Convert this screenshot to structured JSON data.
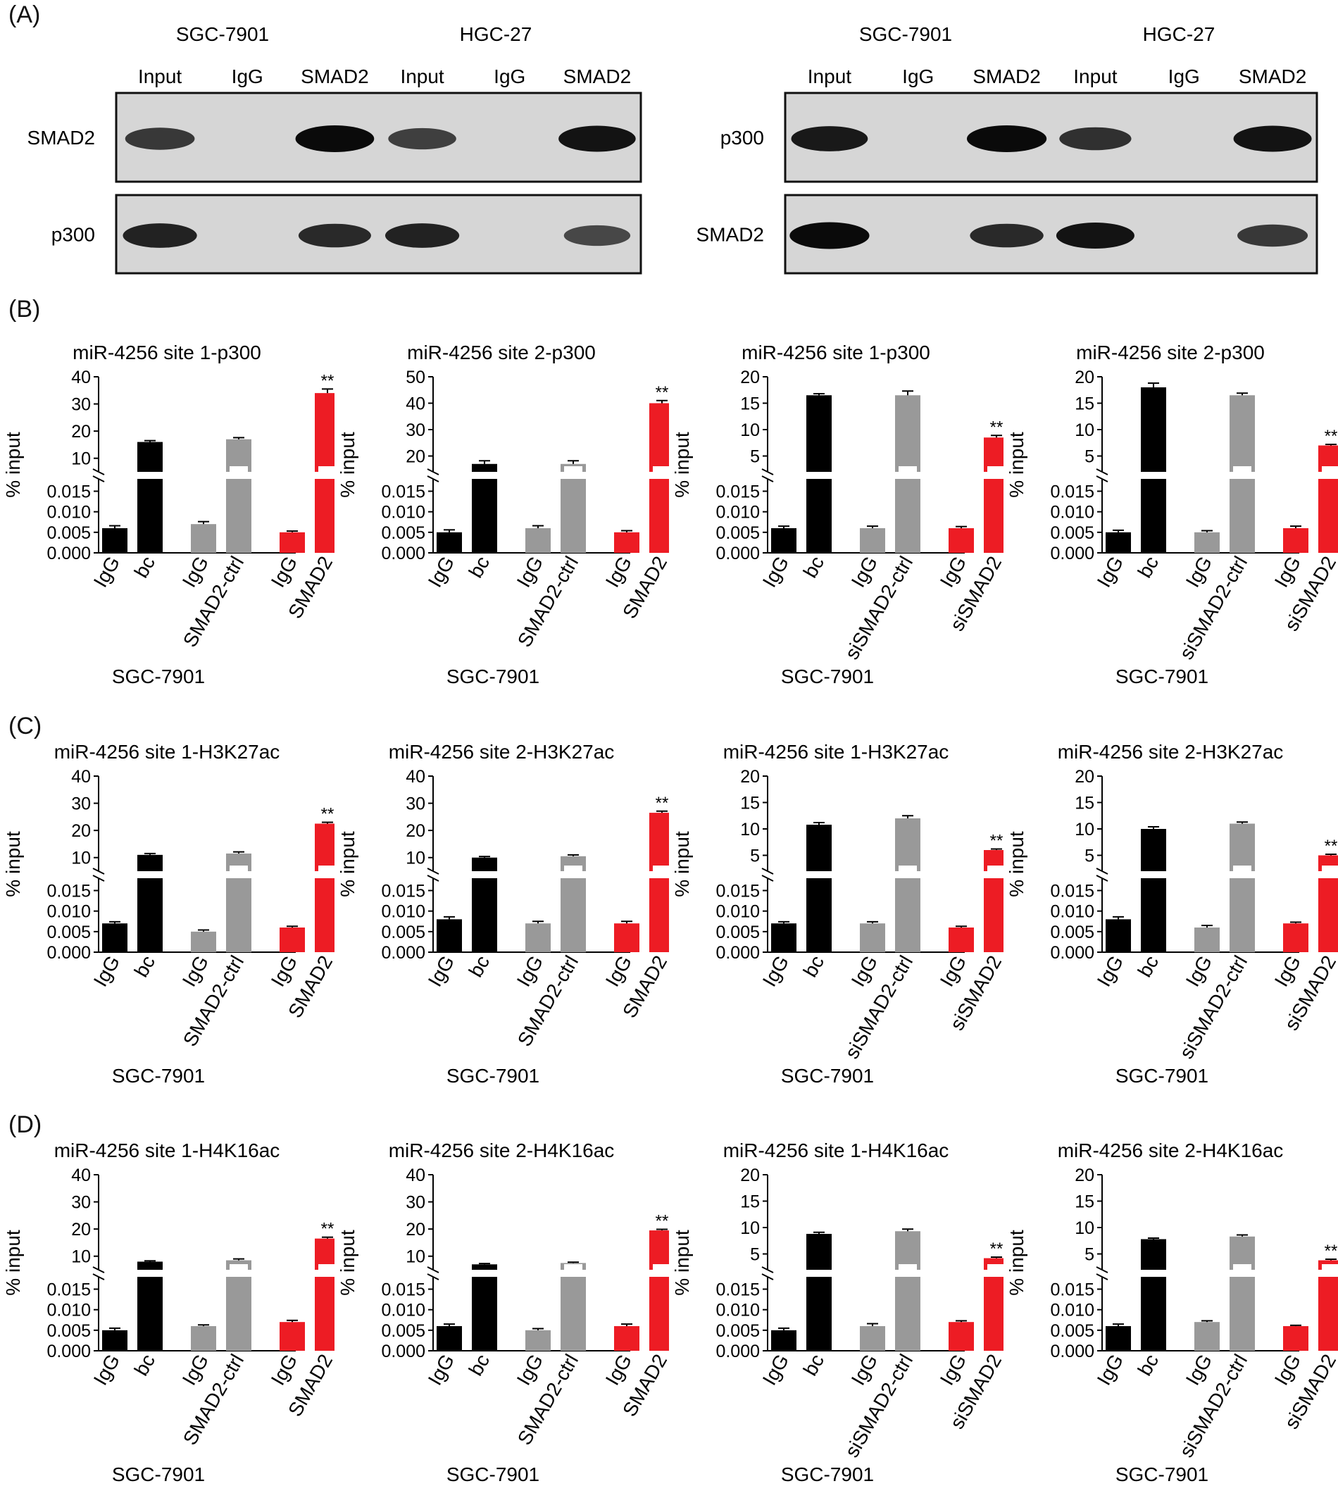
{
  "panel_labels": [
    "(A)",
    "(B)",
    "(C)",
    "(D)"
  ],
  "panel_a": {
    "left": {
      "cell_lines": [
        "SGC-7901",
        "HGC-27"
      ],
      "lanes": [
        "Input",
        "IgG",
        "SMAD2",
        "Input",
        "IgG",
        "SMAD2"
      ],
      "blots": [
        {
          "label": "SMAD2",
          "band_intensity": [
            0.7,
            0,
            1.0,
            0.65,
            0,
            0.95
          ]
        },
        {
          "label": "p300",
          "band_intensity": [
            0.85,
            0,
            0.8,
            0.85,
            0,
            0.6
          ]
        }
      ]
    },
    "right": {
      "cell_lines": [
        "SGC-7901",
        "HGC-27"
      ],
      "lanes": [
        "Input",
        "IgG",
        "SMAD2",
        "Input",
        "IgG",
        "SMAD2"
      ],
      "blots": [
        {
          "label": "p300",
          "band_intensity": [
            0.9,
            0,
            1.0,
            0.75,
            0,
            0.95
          ]
        },
        {
          "label": "SMAD2",
          "band_intensity": [
            1.0,
            0,
            0.8,
            0.95,
            0,
            0.7
          ]
        }
      ]
    }
  },
  "colors": {
    "black": "#000000",
    "gray": "#999999",
    "red": "#ed1c24"
  },
  "chart_data": [
    {
      "panel": "B",
      "type": "bar",
      "title": "miR-4256 site 1-p300",
      "ylabel": "% input",
      "xlabel": "SGC-7901",
      "categories": [
        "IgG",
        "bc",
        "IgG",
        "SMAD2-ctrl",
        "IgG",
        "SMAD2"
      ],
      "bar_colors": [
        "black",
        "black",
        "gray",
        "gray",
        "red",
        "red"
      ],
      "lower_axis": {
        "ticks": [
          "0.000",
          "0.005",
          "0.010",
          "0.015"
        ],
        "max": 0.018
      },
      "upper_axis": {
        "ticks": [
          "10",
          "20",
          "30",
          "40"
        ],
        "min": 5,
        "max": 40
      },
      "values": [
        0.006,
        16,
        0.007,
        17,
        0.005,
        34
      ],
      "errors": [
        0.0006,
        0.5,
        0.0006,
        0.6,
        0.0003,
        1.5
      ],
      "significance": [
        null,
        null,
        null,
        null,
        null,
        "**"
      ]
    },
    {
      "panel": "B",
      "type": "bar",
      "title": "miR-4256 site 2-p300",
      "ylabel": "% input",
      "xlabel": "SGC-7901",
      "categories": [
        "IgG",
        "bc",
        "IgG",
        "SMAD2-ctrl",
        "IgG",
        "SMAD2"
      ],
      "bar_colors": [
        "black",
        "black",
        "gray",
        "gray",
        "red",
        "red"
      ],
      "lower_axis": {
        "ticks": [
          "0.000",
          "0.005",
          "0.010",
          "0.015"
        ],
        "max": 0.018
      },
      "upper_axis": {
        "ticks": [
          "20",
          "30",
          "40",
          "50"
        ],
        "min": 14,
        "max": 50
      },
      "values": [
        0.005,
        17,
        0.006,
        17,
        0.005,
        40
      ],
      "errors": [
        0.0006,
        1.2,
        0.0006,
        1.2,
        0.0004,
        1.0
      ],
      "significance": [
        null,
        null,
        null,
        null,
        null,
        "**"
      ]
    },
    {
      "panel": "B",
      "type": "bar",
      "title": "miR-4256 site 1-p300",
      "ylabel": "% input",
      "xlabel": "SGC-7901",
      "categories": [
        "IgG",
        "bc",
        "IgG",
        "siSMAD2-ctrl",
        "IgG",
        "siSMAD2"
      ],
      "bar_colors": [
        "black",
        "black",
        "gray",
        "gray",
        "red",
        "red"
      ],
      "lower_axis": {
        "ticks": [
          "0.000",
          "0.005",
          "0.010",
          "0.015"
        ],
        "max": 0.018
      },
      "upper_axis": {
        "ticks": [
          "5",
          "10",
          "15",
          "20"
        ],
        "min": 2,
        "max": 20
      },
      "values": [
        0.006,
        16.5,
        0.006,
        16.5,
        0.006,
        8.5
      ],
      "errors": [
        0.0005,
        0.3,
        0.0005,
        0.8,
        0.0004,
        0.4
      ],
      "significance": [
        null,
        null,
        null,
        null,
        null,
        "**"
      ]
    },
    {
      "panel": "B",
      "type": "bar",
      "title": "miR-4256 site 2-p300",
      "ylabel": "% input",
      "xlabel": "SGC-7901",
      "categories": [
        "IgG",
        "bc",
        "IgG",
        "siSMAD2-ctrl",
        "IgG",
        "siSMAD2"
      ],
      "bar_colors": [
        "black",
        "black",
        "gray",
        "gray",
        "red",
        "red"
      ],
      "lower_axis": {
        "ticks": [
          "0.000",
          "0.005",
          "0.010",
          "0.015"
        ],
        "max": 0.018
      },
      "upper_axis": {
        "ticks": [
          "5",
          "10",
          "15",
          "20"
        ],
        "min": 2,
        "max": 20
      },
      "values": [
        0.005,
        18,
        0.005,
        16.5,
        0.006,
        7
      ],
      "errors": [
        0.0005,
        0.8,
        0.0004,
        0.4,
        0.0005,
        0.2
      ],
      "significance": [
        null,
        null,
        null,
        null,
        null,
        "**"
      ]
    },
    {
      "panel": "C",
      "type": "bar",
      "title": "miR-4256 site 1-H3K27ac",
      "ylabel": "% input",
      "xlabel": "SGC-7901",
      "categories": [
        "IgG",
        "bc",
        "IgG",
        "SMAD2-ctrl",
        "IgG",
        "SMAD2"
      ],
      "bar_colors": [
        "black",
        "black",
        "gray",
        "gray",
        "red",
        "red"
      ],
      "lower_axis": {
        "ticks": [
          "0.000",
          "0.005",
          "0.010",
          "0.015"
        ],
        "max": 0.018
      },
      "upper_axis": {
        "ticks": [
          "10",
          "20",
          "30",
          "40"
        ],
        "min": 5,
        "max": 40
      },
      "values": [
        0.007,
        11,
        0.005,
        11.5,
        0.006,
        22.5
      ],
      "errors": [
        0.0004,
        0.5,
        0.0004,
        0.6,
        0.0003,
        0.5
      ],
      "significance": [
        null,
        null,
        null,
        null,
        null,
        "**"
      ]
    },
    {
      "panel": "C",
      "type": "bar",
      "title": "miR-4256 site 2-H3K27ac",
      "ylabel": "% input",
      "xlabel": "SGC-7901",
      "categories": [
        "IgG",
        "bc",
        "IgG",
        "SMAD2-ctrl",
        "IgG",
        "SMAD2"
      ],
      "bar_colors": [
        "black",
        "black",
        "gray",
        "gray",
        "red",
        "red"
      ],
      "lower_axis": {
        "ticks": [
          "0.000",
          "0.005",
          "0.010",
          "0.015"
        ],
        "max": 0.018
      },
      "upper_axis": {
        "ticks": [
          "10",
          "20",
          "30",
          "40"
        ],
        "min": 5,
        "max": 40
      },
      "values": [
        0.008,
        10,
        0.007,
        10.5,
        0.007,
        26.5
      ],
      "errors": [
        0.0006,
        0.4,
        0.0005,
        0.5,
        0.0005,
        0.6
      ],
      "significance": [
        null,
        null,
        null,
        null,
        null,
        "**"
      ]
    },
    {
      "panel": "C",
      "type": "bar",
      "title": "miR-4256 site 1-H3K27ac",
      "ylabel": "% input",
      "xlabel": "SGC-7901",
      "categories": [
        "IgG",
        "bc",
        "IgG",
        "siSMAD2-ctrl",
        "IgG",
        "siSMAD2"
      ],
      "bar_colors": [
        "black",
        "black",
        "gray",
        "gray",
        "red",
        "red"
      ],
      "lower_axis": {
        "ticks": [
          "0.000",
          "0.005",
          "0.010",
          "0.015"
        ],
        "max": 0.018
      },
      "upper_axis": {
        "ticks": [
          "5",
          "10",
          "15",
          "20"
        ],
        "min": 2,
        "max": 20
      },
      "values": [
        0.007,
        10.8,
        0.007,
        12,
        0.006,
        6
      ],
      "errors": [
        0.0004,
        0.4,
        0.0004,
        0.5,
        0.0003,
        0.2
      ],
      "significance": [
        null,
        null,
        null,
        null,
        null,
        "**"
      ]
    },
    {
      "panel": "C",
      "type": "bar",
      "title": "miR-4256 site 2-H3K27ac",
      "ylabel": "% input",
      "xlabel": "SGC-7901",
      "categories": [
        "IgG",
        "bc",
        "IgG",
        "siSMAD2-ctrl",
        "IgG",
        "siSMAD2"
      ],
      "bar_colors": [
        "black",
        "black",
        "gray",
        "gray",
        "red",
        "red"
      ],
      "lower_axis": {
        "ticks": [
          "0.000",
          "0.005",
          "0.010",
          "0.015"
        ],
        "max": 0.018
      },
      "upper_axis": {
        "ticks": [
          "5",
          "10",
          "15",
          "20"
        ],
        "min": 2,
        "max": 20
      },
      "values": [
        0.008,
        10,
        0.006,
        11,
        0.007,
        5
      ],
      "errors": [
        0.0006,
        0.4,
        0.0005,
        0.3,
        0.0003,
        0.2
      ],
      "significance": [
        null,
        null,
        null,
        null,
        null,
        "**"
      ]
    },
    {
      "panel": "D",
      "type": "bar",
      "title": "miR-4256 site 1-H4K16ac",
      "ylabel": "% input",
      "xlabel": "SGC-7901",
      "categories": [
        "IgG",
        "bc",
        "IgG",
        "SMAD2-ctrl",
        "IgG",
        "SMAD2"
      ],
      "bar_colors": [
        "black",
        "black",
        "gray",
        "gray",
        "red",
        "red"
      ],
      "lower_axis": {
        "ticks": [
          "0.000",
          "0.005",
          "0.010",
          "0.015"
        ],
        "max": 0.018
      },
      "upper_axis": {
        "ticks": [
          "10",
          "20",
          "30",
          "40"
        ],
        "min": 5,
        "max": 40
      },
      "values": [
        0.005,
        8,
        0.006,
        8.5,
        0.007,
        16.5
      ],
      "errors": [
        0.0005,
        0.3,
        0.0003,
        0.5,
        0.0004,
        0.5
      ],
      "significance": [
        null,
        null,
        null,
        null,
        null,
        "**"
      ]
    },
    {
      "panel": "D",
      "type": "bar",
      "title": "miR-4256 site 2-H4K16ac",
      "ylabel": "% input",
      "xlabel": "SGC-7901",
      "categories": [
        "IgG",
        "bc",
        "IgG",
        "SMAD2-ctrl",
        "IgG",
        "SMAD2"
      ],
      "bar_colors": [
        "black",
        "black",
        "gray",
        "gray",
        "red",
        "red"
      ],
      "lower_axis": {
        "ticks": [
          "0.000",
          "0.005",
          "0.010",
          "0.015"
        ],
        "max": 0.018
      },
      "upper_axis": {
        "ticks": [
          "10",
          "20",
          "30",
          "40"
        ],
        "min": 5,
        "max": 40
      },
      "values": [
        0.006,
        7,
        0.005,
        7.5,
        0.006,
        19.5
      ],
      "errors": [
        0.0005,
        0.3,
        0.0004,
        0.3,
        0.0005,
        0.4
      ],
      "significance": [
        null,
        null,
        null,
        null,
        null,
        "**"
      ]
    },
    {
      "panel": "D",
      "type": "bar",
      "title": "miR-4256 site 1-H4K16ac",
      "ylabel": "% input",
      "xlabel": "SGC-7901",
      "categories": [
        "IgG",
        "bc",
        "IgG",
        "siSMAD2-ctrl",
        "IgG",
        "siSMAD2"
      ],
      "bar_colors": [
        "black",
        "black",
        "gray",
        "gray",
        "red",
        "red"
      ],
      "lower_axis": {
        "ticks": [
          "0.000",
          "0.005",
          "0.010",
          "0.015"
        ],
        "max": 0.018
      },
      "upper_axis": {
        "ticks": [
          "5",
          "10",
          "15",
          "20"
        ],
        "min": 2,
        "max": 20
      },
      "values": [
        0.005,
        8.8,
        0.006,
        9.3,
        0.007,
        4.2
      ],
      "errors": [
        0.0005,
        0.3,
        0.0006,
        0.4,
        0.0003,
        0.2
      ],
      "significance": [
        null,
        null,
        null,
        null,
        null,
        "**"
      ]
    },
    {
      "panel": "D",
      "type": "bar",
      "title": "miR-4256 site 2-H4K16ac",
      "ylabel": "% input",
      "xlabel": "SGC-7901",
      "categories": [
        "IgG",
        "bc",
        "IgG",
        "siSMAD2-ctrl",
        "IgG",
        "siSMAD2"
      ],
      "bar_colors": [
        "black",
        "black",
        "gray",
        "gray",
        "red",
        "red"
      ],
      "lower_axis": {
        "ticks": [
          "0.000",
          "0.005",
          "0.010",
          "0.015"
        ],
        "max": 0.018
      },
      "upper_axis": {
        "ticks": [
          "5",
          "10",
          "15",
          "20"
        ],
        "min": 2,
        "max": 20
      },
      "values": [
        0.006,
        7.8,
        0.007,
        8.3,
        0.006,
        3.8
      ],
      "errors": [
        0.0005,
        0.2,
        0.0003,
        0.3,
        0.0002,
        0.2
      ],
      "significance": [
        null,
        null,
        null,
        null,
        null,
        "**"
      ]
    }
  ]
}
